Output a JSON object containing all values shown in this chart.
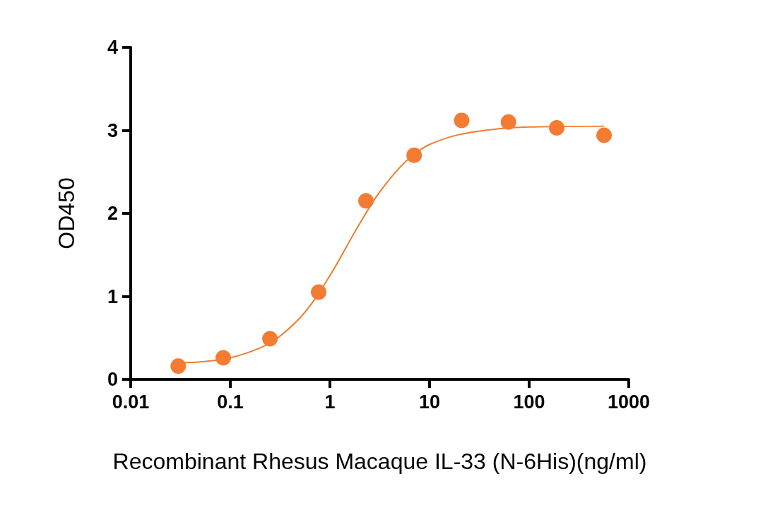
{
  "chart_data": {
    "type": "scatter",
    "xlabel": "Recombinant Rhesus Macaque IL-33 (N-6His)(ng/ml)",
    "ylabel": "OD450",
    "log": "x",
    "xlim": [
      0.01,
      1000
    ],
    "xticks": [
      0.01,
      0.1,
      1,
      10,
      100,
      1000
    ],
    "ylim": [
      0,
      4
    ],
    "yticks": [
      0,
      1,
      2,
      3,
      4
    ],
    "grid": false,
    "series": [
      {
        "marker": "circle",
        "color": "#f47b32",
        "x": [
          0.03,
          0.085,
          0.25,
          0.77,
          2.3,
          7,
          21,
          62,
          189,
          565
        ],
        "values": [
          0.16,
          0.26,
          0.49,
          1.05,
          2.15,
          2.7,
          3.12,
          3.1,
          3.03,
          2.94
        ]
      },
      {
        "type": "line",
        "marker": "none",
        "color": "#ee7d31",
        "line_style": "solid",
        "x": [
          0.03,
          0.05,
          0.1,
          0.2,
          0.3,
          0.5,
          0.7,
          1,
          1.2,
          1.5,
          2,
          3,
          5,
          7,
          10,
          20,
          50,
          100,
          560
        ],
        "values": [
          0.2,
          0.21,
          0.26,
          0.38,
          0.5,
          0.74,
          0.96,
          1.25,
          1.41,
          1.62,
          1.88,
          2.22,
          2.55,
          2.71,
          2.83,
          2.95,
          3.02,
          3.04,
          3.05
        ]
      }
    ]
  }
}
